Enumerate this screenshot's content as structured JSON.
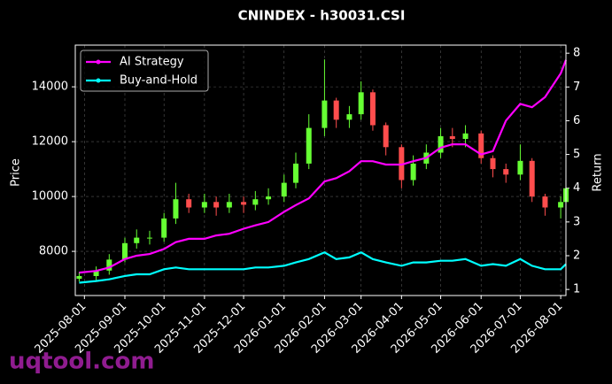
{
  "chart_data": {
    "type": "candlestick",
    "title": "CNINDEX - h30031.CSI",
    "ylabel": "Price",
    "y2label": "Return",
    "watermark": "uqtool.com",
    "x": [
      "2025-07-28",
      "2025-08-10",
      "2025-08-20",
      "2025-09-01",
      "2025-09-10",
      "2025-09-20",
      "2025-10-01",
      "2025-10-10",
      "2025-10-20",
      "2025-11-01",
      "2025-11-10",
      "2025-11-20",
      "2025-12-01",
      "2025-12-10",
      "2025-12-20",
      "2026-01-01",
      "2026-01-10",
      "2026-01-20",
      "2026-02-01",
      "2026-02-10",
      "2026-02-20",
      "2026-03-01",
      "2026-03-10",
      "2026-03-20",
      "2026-04-01",
      "2026-04-10",
      "2026-04-20",
      "2026-05-01",
      "2026-05-10",
      "2026-05-20",
      "2026-06-01",
      "2026-06-10",
      "2026-06-20",
      "2026-07-01",
      "2026-07-10",
      "2026-07-20",
      "2026-08-01",
      "2026-08-05"
    ],
    "open": [
      7000,
      7100,
      7300,
      7700,
      8300,
      8500,
      8500,
      9200,
      9900,
      9600,
      9800,
      9600,
      9800,
      9700,
      9900,
      10000,
      10500,
      11200,
      12500,
      13500,
      12800,
      13000,
      13800,
      12600,
      11800,
      10600,
      11200,
      11600,
      12200,
      12100,
      12300,
      11400,
      11000,
      10800,
      11300,
      10000,
      9600,
      9800
    ],
    "high": [
      7250,
      7450,
      7900,
      8500,
      8800,
      8750,
      9400,
      10500,
      10100,
      10100,
      10000,
      10100,
      10000,
      10200,
      10300,
      10800,
      11600,
      13000,
      15000,
      13600,
      13300,
      14200,
      13900,
      12700,
      11900,
      11500,
      11900,
      12500,
      12500,
      12600,
      12400,
      11500,
      11200,
      11900,
      11400,
      10100,
      10000,
      10600
    ],
    "low": [
      6900,
      6950,
      7150,
      7600,
      8100,
      8250,
      8350,
      9000,
      9400,
      9400,
      9300,
      9400,
      9400,
      9500,
      9700,
      9800,
      10300,
      11000,
      12200,
      12500,
      12500,
      12800,
      12400,
      11500,
      10300,
      10400,
      11000,
      11400,
      11800,
      11800,
      11200,
      10700,
      10500,
      10600,
      9800,
      9300,
      9200,
      9600
    ],
    "close": [
      7100,
      7300,
      7700,
      8300,
      8500,
      8500,
      9200,
      9900,
      9600,
      9800,
      9600,
      9800,
      9700,
      9900,
      10000,
      10500,
      11200,
      12500,
      13500,
      12800,
      13000,
      13800,
      12600,
      11800,
      10600,
      11200,
      11600,
      12200,
      12100,
      12300,
      11400,
      11000,
      10800,
      11300,
      10000,
      9600,
      9800,
      10300
    ],
    "up_color": "#66ff33",
    "down_color": "#ff4d4d",
    "series": [
      {
        "name": "AI Strategy",
        "color": "#ff00ff",
        "axis": "y2",
        "values": [
          1.5,
          1.55,
          1.65,
          1.9,
          2.0,
          2.05,
          2.2,
          2.4,
          2.5,
          2.5,
          2.6,
          2.65,
          2.8,
          2.9,
          3.0,
          3.3,
          3.5,
          3.7,
          4.2,
          4.3,
          4.5,
          4.8,
          4.8,
          4.7,
          4.7,
          4.8,
          4.9,
          5.2,
          5.3,
          5.3,
          5.0,
          5.1,
          6.0,
          6.5,
          6.4,
          6.7,
          7.4,
          7.8
        ]
      },
      {
        "name": "Buy-and-Hold",
        "color": "#00ffff",
        "axis": "y2",
        "values": [
          1.2,
          1.25,
          1.3,
          1.4,
          1.45,
          1.45,
          1.6,
          1.65,
          1.6,
          1.6,
          1.6,
          1.6,
          1.6,
          1.65,
          1.65,
          1.7,
          1.8,
          1.9,
          2.1,
          1.9,
          1.95,
          2.1,
          1.9,
          1.8,
          1.7,
          1.8,
          1.8,
          1.85,
          1.85,
          1.9,
          1.7,
          1.75,
          1.7,
          1.9,
          1.7,
          1.6,
          1.6,
          1.75
        ]
      }
    ],
    "xlim": [
      "2025-07-25",
      "2026-08-05"
    ],
    "xticks": [
      "2025-08-01",
      "2025-09-01",
      "2025-10-01",
      "2025-11-01",
      "2025-12-01",
      "2026-01-01",
      "2026-02-01",
      "2026-03-01",
      "2026-04-01",
      "2026-05-01",
      "2026-06-01",
      "2026-07-01",
      "2026-08-01"
    ],
    "ylim": [
      6390,
      15520
    ],
    "yticks": [
      8000,
      10000,
      12000,
      14000
    ],
    "y2lim": [
      0.82,
      8.24
    ],
    "y2ticks": [
      1,
      2,
      3,
      4,
      5,
      6,
      7,
      8
    ],
    "grid": true,
    "legend": "upper left"
  }
}
